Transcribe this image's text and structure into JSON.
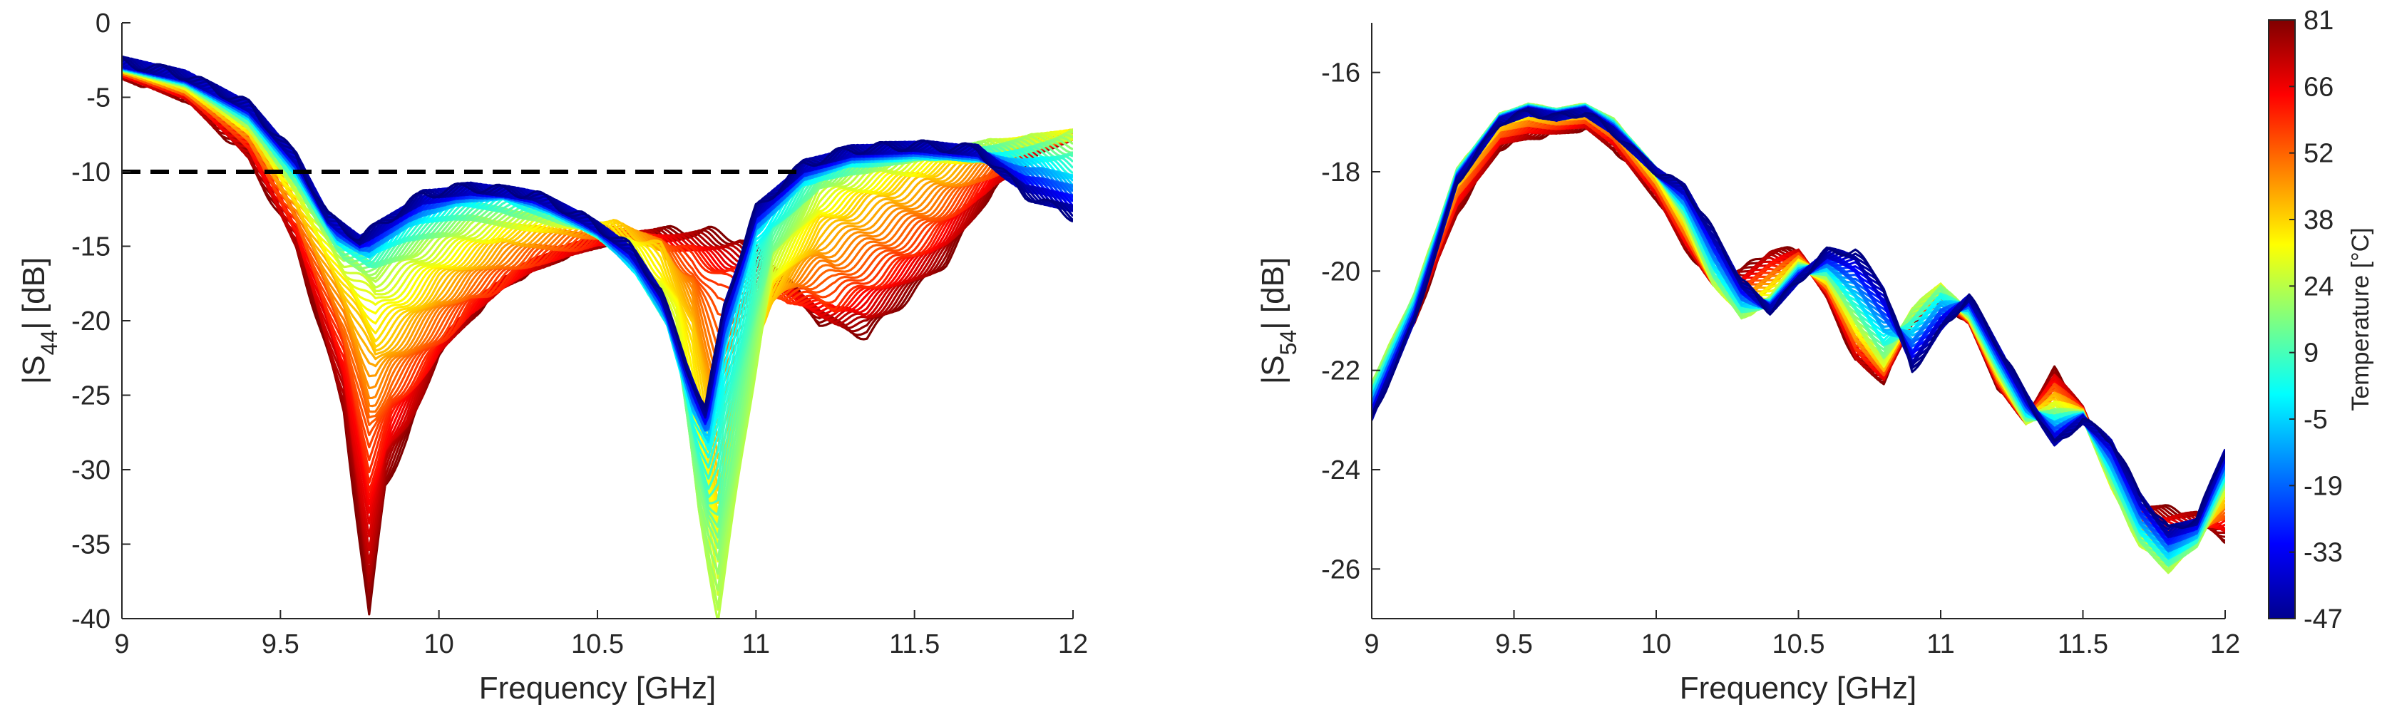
{
  "chart_data": [
    {
      "type": "line",
      "id": "s44",
      "xlabel": "Frequency [GHz]",
      "ylabel_main": "|S",
      "ylabel_sub": "44",
      "ylabel_end": "| [dB]",
      "xlim": [
        9,
        12
      ],
      "ylim": [
        -40,
        0
      ],
      "xticks": [
        9,
        9.5,
        10,
        10.5,
        11,
        11.5,
        12
      ],
      "xtick_labels": [
        "9",
        "9.5",
        "10",
        "10.5",
        "11",
        "11.5",
        "12"
      ],
      "yticks": [
        0,
        -5,
        -10,
        -15,
        -20,
        -25,
        -30,
        -35,
        -40
      ],
      "ytick_labels": [
        "0",
        "-5",
        "-10",
        "-15",
        "-20",
        "-25",
        "-30",
        "-35",
        "-40"
      ],
      "reference_line": {
        "y": -10,
        "style": "dashed",
        "color": "#000000"
      },
      "temperature_range_C": [
        -47,
        81
      ],
      "series": [
        {
          "temperature": 81,
          "x": [
            9.0,
            9.2,
            9.4,
            9.55,
            9.7,
            9.78,
            9.83,
            9.9,
            10.0,
            10.2,
            10.4,
            10.55,
            10.7,
            10.85,
            10.95,
            11.05,
            11.2,
            11.35,
            11.5,
            11.6,
            11.75,
            11.9,
            12.0
          ],
          "y": [
            -3.5,
            -5.0,
            -9.0,
            -15.0,
            -26.0,
            -40.0,
            -31.0,
            -28.0,
            -22.0,
            -17.5,
            -15.5,
            -14.5,
            -14.0,
            -14.0,
            -14.5,
            -16.0,
            -20.0,
            -21.0,
            -18.0,
            -16.0,
            -11.0,
            -8.5,
            -7.5
          ]
        },
        {
          "temperature": 60,
          "x": [
            9.0,
            9.2,
            9.4,
            9.55,
            9.7,
            9.78,
            9.85,
            9.95,
            10.1,
            10.3,
            10.5,
            10.65,
            10.8,
            10.9,
            11.0,
            11.1,
            11.25,
            11.4,
            11.55,
            11.7,
            11.85,
            12.0
          ],
          "y": [
            -3.2,
            -4.6,
            -8.0,
            -13.5,
            -22.0,
            -30.0,
            -26.0,
            -23.0,
            -19.0,
            -16.0,
            -14.5,
            -14.5,
            -15.5,
            -17.0,
            -17.5,
            -18.5,
            -19.0,
            -17.0,
            -14.5,
            -11.0,
            -8.5,
            -7.5
          ]
        },
        {
          "temperature": 40,
          "x": [
            9.0,
            9.2,
            9.4,
            9.55,
            9.7,
            9.8,
            9.9,
            10.0,
            10.2,
            10.4,
            10.55,
            10.7,
            10.8,
            10.88,
            10.95,
            11.05,
            11.2,
            11.35,
            11.5,
            11.7,
            11.85,
            12.0
          ],
          "y": [
            -3.0,
            -4.3,
            -7.2,
            -12.0,
            -18.0,
            -22.0,
            -20.0,
            -17.5,
            -14.5,
            -13.5,
            -13.5,
            -15.0,
            -20.0,
            -30.0,
            -24.0,
            -18.5,
            -14.0,
            -12.0,
            -10.5,
            -9.0,
            -8.0,
            -7.5
          ]
        },
        {
          "temperature": 24,
          "x": [
            9.0,
            9.2,
            9.4,
            9.55,
            9.7,
            9.8,
            9.95,
            10.1,
            10.3,
            10.45,
            10.6,
            10.75,
            10.82,
            10.88,
            10.95,
            11.05,
            11.2,
            11.4,
            11.6,
            11.8,
            12.0
          ],
          "y": [
            -2.9,
            -4.0,
            -6.8,
            -11.0,
            -16.0,
            -17.0,
            -15.0,
            -13.5,
            -13.0,
            -13.5,
            -15.5,
            -21.0,
            -33.0,
            -40.0,
            -30.0,
            -16.0,
            -11.0,
            -9.5,
            -8.5,
            -8.0,
            -7.5
          ]
        },
        {
          "temperature": 0,
          "x": [
            9.0,
            9.2,
            9.4,
            9.55,
            9.68,
            9.78,
            9.9,
            10.05,
            10.2,
            10.35,
            10.5,
            10.62,
            10.72,
            10.8,
            10.85,
            10.9,
            11.0,
            11.15,
            11.3,
            11.5,
            11.7,
            11.9,
            12.0
          ],
          "y": [
            -2.8,
            -3.8,
            -6.2,
            -10.0,
            -14.5,
            -15.5,
            -13.5,
            -12.0,
            -11.5,
            -12.5,
            -14.0,
            -16.5,
            -20.0,
            -26.0,
            -28.0,
            -22.0,
            -14.0,
            -10.5,
            -9.2,
            -8.8,
            -9.0,
            -9.5,
            -10.5
          ]
        },
        {
          "temperature": -47,
          "x": [
            9.0,
            9.2,
            9.4,
            9.55,
            9.65,
            9.75,
            9.85,
            9.95,
            10.1,
            10.3,
            10.45,
            10.6,
            10.7,
            10.78,
            10.84,
            10.9,
            11.0,
            11.15,
            11.3,
            11.5,
            11.7,
            11.85,
            12.0
          ],
          "y": [
            -2.6,
            -3.5,
            -5.5,
            -9.0,
            -13.0,
            -14.5,
            -13.0,
            -11.5,
            -11.0,
            -11.5,
            -13.0,
            -15.0,
            -18.0,
            -23.0,
            -26.0,
            -19.0,
            -12.5,
            -9.5,
            -8.5,
            -8.2,
            -8.5,
            -11.5,
            -13.0
          ]
        }
      ]
    },
    {
      "type": "line",
      "id": "s54",
      "xlabel": "Frequency [GHz]",
      "ylabel_main": "|S",
      "ylabel_sub": "54",
      "ylabel_end": "| [dB]",
      "xlim": [
        9,
        12
      ],
      "ylim": [
        -27,
        -15
      ],
      "xticks": [
        9,
        9.5,
        10,
        10.5,
        11,
        11.5,
        12
      ],
      "xtick_labels": [
        "9",
        "9.5",
        "10",
        "10.5",
        "11",
        "11.5",
        "12"
      ],
      "yticks": [
        -16,
        -18,
        -20,
        -22,
        -24,
        -26
      ],
      "ytick_labels": [
        "-16",
        "-18",
        "-20",
        "-22",
        "-24",
        "-26"
      ],
      "temperature_range_C": [
        -47,
        81
      ],
      "series": [
        {
          "temperature": 81,
          "x": [
            9.0,
            9.15,
            9.3,
            9.45,
            9.55,
            9.65,
            9.75,
            9.85,
            10.0,
            10.1,
            10.2,
            10.3,
            10.4,
            10.5,
            10.6,
            10.7,
            10.8,
            10.9,
            11.0,
            11.1,
            11.2,
            11.3,
            11.4,
            11.5,
            11.6,
            11.7,
            11.8,
            11.9,
            12.0
          ],
          "y": [
            -22.5,
            -21.0,
            -18.8,
            -17.5,
            -17.3,
            -17.2,
            -17.1,
            -17.5,
            -18.5,
            -19.5,
            -20.2,
            -20.0,
            -19.6,
            -19.6,
            -20.5,
            -21.8,
            -22.2,
            -21.0,
            -20.6,
            -21.0,
            -22.3,
            -23.0,
            -22.0,
            -22.8,
            -24.2,
            -24.7,
            -24.8,
            -24.9,
            -25.4
          ]
        },
        {
          "temperature": 24,
          "x": [
            9.0,
            9.15,
            9.3,
            9.45,
            9.55,
            9.65,
            9.75,
            9.85,
            10.0,
            10.1,
            10.2,
            10.3,
            10.4,
            10.5,
            10.6,
            10.7,
            10.8,
            10.9,
            11.0,
            11.1,
            11.2,
            11.3,
            11.4,
            11.5,
            11.6,
            11.7,
            11.8,
            11.9,
            12.0
          ],
          "y": [
            -22.3,
            -20.5,
            -18.0,
            -16.9,
            -16.7,
            -16.8,
            -16.7,
            -17.0,
            -18.0,
            -18.9,
            -20.2,
            -20.9,
            -20.6,
            -19.9,
            -20.1,
            -21.0,
            -21.8,
            -20.8,
            -20.3,
            -20.9,
            -22.0,
            -23.0,
            -22.8,
            -22.9,
            -24.3,
            -25.5,
            -26.0,
            -25.5,
            -24.3
          ]
        },
        {
          "temperature": -47,
          "x": [
            9.0,
            9.15,
            9.3,
            9.45,
            9.55,
            9.65,
            9.75,
            9.85,
            10.0,
            10.1,
            10.2,
            10.3,
            10.4,
            10.5,
            10.6,
            10.7,
            10.8,
            10.9,
            11.0,
            11.1,
            11.2,
            11.3,
            11.4,
            11.5,
            11.6,
            11.7,
            11.8,
            11.9,
            12.0
          ],
          "y": [
            -23.0,
            -21.0,
            -18.2,
            -17.0,
            -16.8,
            -16.9,
            -16.8,
            -17.2,
            -18.0,
            -18.3,
            -19.2,
            -20.2,
            -20.8,
            -20.2,
            -19.6,
            -19.6,
            -20.3,
            -22.0,
            -21.2,
            -20.5,
            -21.5,
            -22.5,
            -23.5,
            -23.0,
            -23.4,
            -24.5,
            -25.2,
            -25.0,
            -23.6
          ]
        }
      ]
    }
  ],
  "colorbar": {
    "title": "Temperature [°C]",
    "tick_labels": [
      "81",
      "66",
      "52",
      "38",
      "24",
      "9",
      "-5",
      "-19",
      "-33",
      "-47"
    ],
    "min": -47,
    "max": 81,
    "colormap": "jet"
  }
}
